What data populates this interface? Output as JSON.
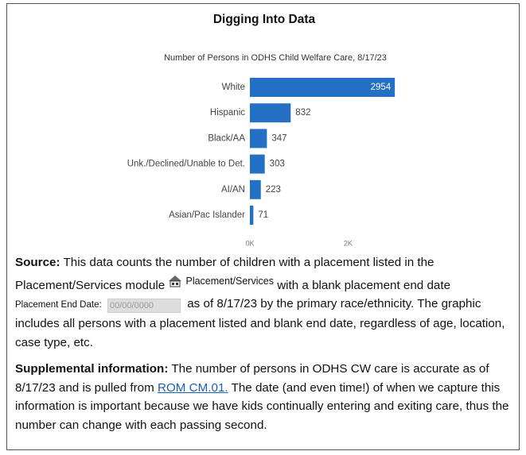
{
  "header": {
    "title": "Digging Into Data"
  },
  "chart_data": {
    "type": "bar",
    "orientation": "horizontal",
    "title": "Number of Persons in ODHS Child Welfare Care, 8/17/23",
    "categories": [
      "White",
      "Hispanic",
      "Black/AA",
      "Unk./Declined/Unable to Det.",
      "AI/AN",
      "Asian/Pac Islander"
    ],
    "values": [
      2954,
      832,
      347,
      303,
      223,
      71
    ],
    "color": "#2470c4",
    "xlim": [
      0,
      3000
    ],
    "xticks": [
      {
        "value": 0,
        "label": "0K"
      },
      {
        "value": 2000,
        "label": "2K"
      }
    ]
  },
  "source": {
    "label": "Source:",
    "text1": "This data counts the number of children with a placement listed in the Placement/Services module",
    "icon_label": "Placement/Services",
    "text2": "with a blank placement end date",
    "field_label": "Placement End Date:",
    "field_value": "00/00/0000",
    "text3": "as of 8/17/23 by the primary race/ethnicity. The graphic includes all persons with a placement listed and blank end date, regardless of age, location, case type, etc."
  },
  "supplemental": {
    "label": "Supplemental information:",
    "text1": "The number of persons in ODHS CW care is accurate as of 8/17/23 and is pulled from",
    "link": "ROM CM.01.",
    "text2": "The date (and even time!) of when we capture this information is important because we have kids continually entering and exiting care, thus the number can change with each passing second."
  }
}
